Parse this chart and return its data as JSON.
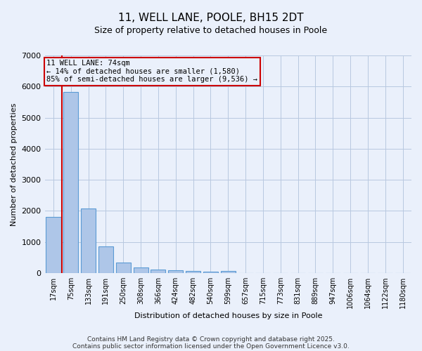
{
  "title": "11, WELL LANE, POOLE, BH15 2DT",
  "subtitle": "Size of property relative to detached houses in Poole",
  "xlabel": "Distribution of detached houses by size in Poole",
  "ylabel": "Number of detached properties",
  "bar_color": "#aec6e8",
  "bar_edge_color": "#5b9bd5",
  "background_color": "#eaf0fb",
  "grid_color": "#b8c8e0",
  "categories": [
    "17sqm",
    "75sqm",
    "133sqm",
    "191sqm",
    "250sqm",
    "308sqm",
    "366sqm",
    "424sqm",
    "482sqm",
    "540sqm",
    "599sqm",
    "657sqm",
    "715sqm",
    "773sqm",
    "831sqm",
    "889sqm",
    "947sqm",
    "1006sqm",
    "1064sqm",
    "1122sqm",
    "1180sqm"
  ],
  "values": [
    1800,
    5820,
    2090,
    850,
    340,
    175,
    110,
    90,
    60,
    55,
    60,
    0,
    0,
    0,
    0,
    0,
    0,
    0,
    0,
    0,
    0
  ],
  "ylim": [
    0,
    7000
  ],
  "yticks": [
    0,
    1000,
    2000,
    3000,
    4000,
    5000,
    6000,
    7000
  ],
  "property_line_color": "#cc0000",
  "annotation_text": "11 WELL LANE: 74sqm\n← 14% of detached houses are smaller (1,580)\n85% of semi-detached houses are larger (9,536) →",
  "annotation_box_color": "#cc0000",
  "footer_line1": "Contains HM Land Registry data © Crown copyright and database right 2025.",
  "footer_line2": "Contains public sector information licensed under the Open Government Licence v3.0.",
  "figsize": [
    6.0,
    5.0
  ],
  "dpi": 100
}
